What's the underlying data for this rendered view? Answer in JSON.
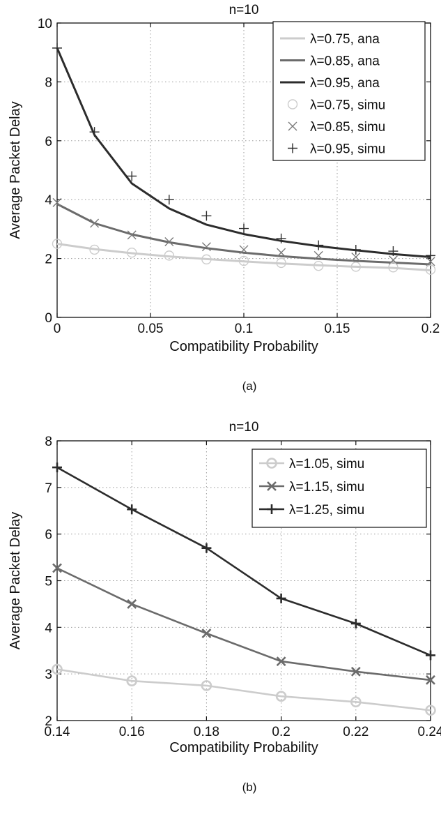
{
  "chart_data": [
    {
      "type": "line",
      "title": "n=10",
      "xlabel": "Compatibility Probability",
      "ylabel": "Average Packet Delay",
      "caption": "(a)",
      "xlim": [
        0,
        0.2
      ],
      "ylim": [
        0,
        10
      ],
      "xticks": [
        0,
        0.05,
        0.1,
        0.15,
        0.2
      ],
      "xtick_labels": [
        "0",
        "0.05",
        "0.1",
        "0.15",
        "0.2"
      ],
      "yticks": [
        0,
        2,
        4,
        6,
        8,
        10
      ],
      "ytick_labels": [
        "0",
        "2",
        "4",
        "6",
        "8",
        "10"
      ],
      "grid": true,
      "legend_position": "top-right",
      "series": [
        {
          "name": "λ=0.75, ana",
          "style": "line",
          "color": "#cccccc",
          "x": [
            0,
            0.02,
            0.04,
            0.06,
            0.08,
            0.1,
            0.12,
            0.14,
            0.16,
            0.18,
            0.2
          ],
          "y": [
            2.5,
            2.32,
            2.18,
            2.07,
            1.98,
            1.9,
            1.83,
            1.77,
            1.72,
            1.68,
            1.6
          ]
        },
        {
          "name": "λ=0.85, ana",
          "style": "line",
          "color": "#6b6b6b",
          "x": [
            0,
            0.02,
            0.04,
            0.06,
            0.08,
            0.1,
            0.12,
            0.14,
            0.16,
            0.18,
            0.2
          ],
          "y": [
            3.85,
            3.2,
            2.82,
            2.55,
            2.35,
            2.2,
            2.08,
            1.99,
            1.92,
            1.86,
            1.8
          ]
        },
        {
          "name": "λ=0.95, ana",
          "style": "line",
          "color": "#2c2c2c",
          "x": [
            0,
            0.02,
            0.04,
            0.06,
            0.08,
            0.1,
            0.12,
            0.14,
            0.16,
            0.18,
            0.2
          ],
          "y": [
            9.15,
            6.2,
            4.55,
            3.7,
            3.15,
            2.83,
            2.6,
            2.42,
            2.28,
            2.15,
            2.05
          ]
        },
        {
          "name": "λ=0.75, simu",
          "style": "marker",
          "marker": "circle",
          "color": "#cccccc",
          "x": [
            0,
            0.02,
            0.04,
            0.06,
            0.08,
            0.1,
            0.12,
            0.14,
            0.16,
            0.18,
            0.2
          ],
          "y": [
            2.5,
            2.3,
            2.2,
            2.1,
            1.97,
            1.92,
            1.85,
            1.75,
            1.72,
            1.7,
            1.62
          ]
        },
        {
          "name": "λ=0.85, simu",
          "style": "marker",
          "marker": "x",
          "color": "#7a7a7a",
          "x": [
            0,
            0.02,
            0.04,
            0.06,
            0.08,
            0.1,
            0.12,
            0.14,
            0.16,
            0.18,
            0.2
          ],
          "y": [
            3.9,
            3.2,
            2.8,
            2.57,
            2.4,
            2.3,
            2.2,
            2.1,
            2.05,
            1.95,
            1.9
          ]
        },
        {
          "name": "λ=0.95, simu",
          "style": "marker",
          "marker": "plus",
          "color": "#2c2c2c",
          "x": [
            0,
            0.02,
            0.04,
            0.06,
            0.08,
            0.1,
            0.12,
            0.14,
            0.16,
            0.18,
            0.2
          ],
          "y": [
            9.15,
            6.3,
            4.8,
            4.0,
            3.45,
            3.02,
            2.68,
            2.45,
            2.3,
            2.25,
            2.1
          ]
        }
      ]
    },
    {
      "type": "line",
      "title": "n=10",
      "xlabel": "Compatibility Probability",
      "ylabel": "Average Packet Delay",
      "caption": "(b)",
      "xlim": [
        0.14,
        0.24
      ],
      "ylim": [
        2,
        8
      ],
      "xticks": [
        0.14,
        0.16,
        0.18,
        0.2,
        0.22,
        0.24
      ],
      "xtick_labels": [
        "0.14",
        "0.16",
        "0.18",
        "0.2",
        "0.22",
        "0.24"
      ],
      "yticks": [
        2,
        3,
        4,
        5,
        6,
        7,
        8
      ],
      "ytick_labels": [
        "2",
        "3",
        "4",
        "5",
        "6",
        "7",
        "8"
      ],
      "grid": true,
      "legend_position": "top-right",
      "series": [
        {
          "name": "λ=1.05, simu",
          "style": "line+marker",
          "marker": "circle",
          "color": "#cccccc",
          "x": [
            0.14,
            0.16,
            0.18,
            0.2,
            0.22,
            0.24
          ],
          "y": [
            3.1,
            2.85,
            2.75,
            2.52,
            2.4,
            2.22
          ]
        },
        {
          "name": "λ=1.15, simu",
          "style": "line+marker",
          "marker": "x",
          "color": "#6b6b6b",
          "x": [
            0.14,
            0.16,
            0.18,
            0.2,
            0.22,
            0.24
          ],
          "y": [
            5.27,
            4.5,
            3.87,
            3.27,
            3.05,
            2.87
          ]
        },
        {
          "name": "λ=1.25, simu",
          "style": "line+marker",
          "marker": "plus",
          "color": "#2c2c2c",
          "x": [
            0.14,
            0.16,
            0.18,
            0.2,
            0.22,
            0.24
          ],
          "y": [
            7.43,
            6.53,
            5.7,
            4.62,
            4.08,
            3.4
          ]
        }
      ]
    }
  ]
}
